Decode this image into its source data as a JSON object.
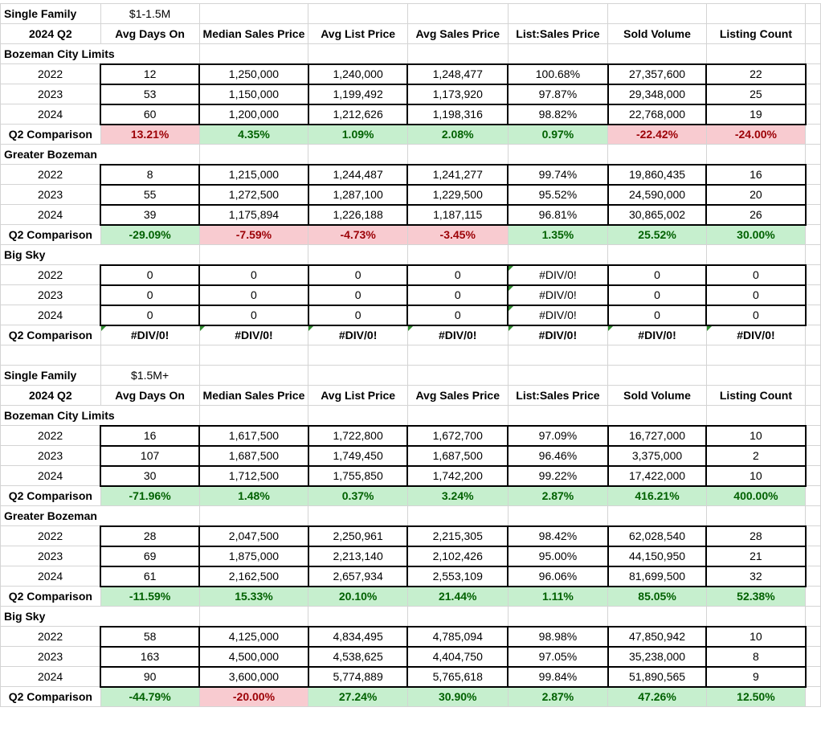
{
  "headers": [
    "2024 Q2",
    "Avg Days On",
    "Median Sales Price",
    "Avg List Price",
    "Avg Sales Price",
    "List:Sales Price",
    "Sold Volume",
    "Listing Count"
  ],
  "sections": [
    {
      "title": "Single Family",
      "range": "$1-1.5M",
      "groups": [
        {
          "name": "Bozeman City Limits",
          "rows": [
            [
              "2022",
              "12",
              "1,250,000",
              "1,240,000",
              "1,248,477",
              "100.68%",
              "27,357,600",
              "22"
            ],
            [
              "2023",
              "53",
              "1,150,000",
              "1,199,492",
              "1,173,920",
              "97.87%",
              "29,348,000",
              "25"
            ],
            [
              "2024",
              "60",
              "1,200,000",
              "1,212,626",
              "1,198,316",
              "98.82%",
              "22,768,000",
              "19"
            ]
          ],
          "comparison": [
            "Q2 Comparison",
            "13.21%",
            "4.35%",
            "1.09%",
            "2.08%",
            "0.97%",
            "-22.42%",
            "-24.00%"
          ],
          "status": [
            "r",
            "g",
            "g",
            "g",
            "g",
            "r",
            "r"
          ]
        },
        {
          "name": "Greater Bozeman",
          "rows": [
            [
              "2022",
              "8",
              "1,215,000",
              "1,244,487",
              "1,241,277",
              "99.74%",
              "19,860,435",
              "16"
            ],
            [
              "2023",
              "55",
              "1,272,500",
              "1,287,100",
              "1,229,500",
              "95.52%",
              "24,590,000",
              "20"
            ],
            [
              "2024",
              "39",
              "1,175,894",
              "1,226,188",
              "1,187,115",
              "96.81%",
              "30,865,002",
              "26"
            ]
          ],
          "comparison": [
            "Q2 Comparison",
            "-29.09%",
            "-7.59%",
            "-4.73%",
            "-3.45%",
            "1.35%",
            "25.52%",
            "30.00%"
          ],
          "status": [
            "g",
            "r",
            "r",
            "r",
            "g",
            "g",
            "g"
          ]
        },
        {
          "name": "Big Sky",
          "rows": [
            [
              "2022",
              "0",
              "0",
              "0",
              "0",
              "#DIV/0!",
              "0",
              "0"
            ],
            [
              "2023",
              "0",
              "0",
              "0",
              "0",
              "#DIV/0!",
              "0",
              "0"
            ],
            [
              "2024",
              "0",
              "0",
              "0",
              "0",
              "#DIV/0!",
              "0",
              "0"
            ]
          ],
          "comparison": [
            "Q2 Comparison",
            "#DIV/0!",
            "#DIV/0!",
            "#DIV/0!",
            "#DIV/0!",
            "#DIV/0!",
            "#DIV/0!",
            "#DIV/0!"
          ],
          "status": [
            "",
            "",
            "",
            "",
            "",
            "",
            ""
          ]
        }
      ]
    },
    {
      "title": "Single Family",
      "range": "$1.5M+",
      "groups": [
        {
          "name": "Bozeman City Limits",
          "rows": [
            [
              "2022",
              "16",
              "1,617,500",
              "1,722,800",
              "1,672,700",
              "97.09%",
              "16,727,000",
              "10"
            ],
            [
              "2023",
              "107",
              "1,687,500",
              "1,749,450",
              "1,687,500",
              "96.46%",
              "3,375,000",
              "2"
            ],
            [
              "2024",
              "30",
              "1,712,500",
              "1,755,850",
              "1,742,200",
              "99.22%",
              "17,422,000",
              "10"
            ]
          ],
          "comparison": [
            "Q2 Comparison",
            "-71.96%",
            "1.48%",
            "0.37%",
            "3.24%",
            "2.87%",
            "416.21%",
            "400.00%"
          ],
          "status": [
            "g",
            "g",
            "g",
            "g",
            "g",
            "g",
            "g"
          ]
        },
        {
          "name": "Greater Bozeman",
          "rows": [
            [
              "2022",
              "28",
              "2,047,500",
              "2,250,961",
              "2,215,305",
              "98.42%",
              "62,028,540",
              "28"
            ],
            [
              "2023",
              "69",
              "1,875,000",
              "2,213,140",
              "2,102,426",
              "95.00%",
              "44,150,950",
              "21"
            ],
            [
              "2024",
              "61",
              "2,162,500",
              "2,657,934",
              "2,553,109",
              "96.06%",
              "81,699,500",
              "32"
            ]
          ],
          "comparison": [
            "Q2 Comparison",
            "-11.59%",
            "15.33%",
            "20.10%",
            "21.44%",
            "1.11%",
            "85.05%",
            "52.38%"
          ],
          "status": [
            "g",
            "g",
            "g",
            "g",
            "g",
            "g",
            "g"
          ]
        },
        {
          "name": "Big Sky",
          "rows": [
            [
              "2022",
              "58",
              "4,125,000",
              "4,834,495",
              "4,785,094",
              "98.98%",
              "47,850,942",
              "10"
            ],
            [
              "2023",
              "163",
              "4,500,000",
              "4,538,625",
              "4,404,750",
              "97.05%",
              "35,238,000",
              "8"
            ],
            [
              "2024",
              "90",
              "3,600,000",
              "5,774,889",
              "5,765,618",
              "99.84%",
              "51,890,565",
              "9"
            ]
          ],
          "comparison": [
            "Q2 Comparison",
            "-44.79%",
            "-20.00%",
            "27.24%",
            "30.90%",
            "2.87%",
            "47.26%",
            "12.50%"
          ],
          "status": [
            "g",
            "r",
            "g",
            "g",
            "g",
            "g",
            "g"
          ]
        }
      ]
    }
  ]
}
